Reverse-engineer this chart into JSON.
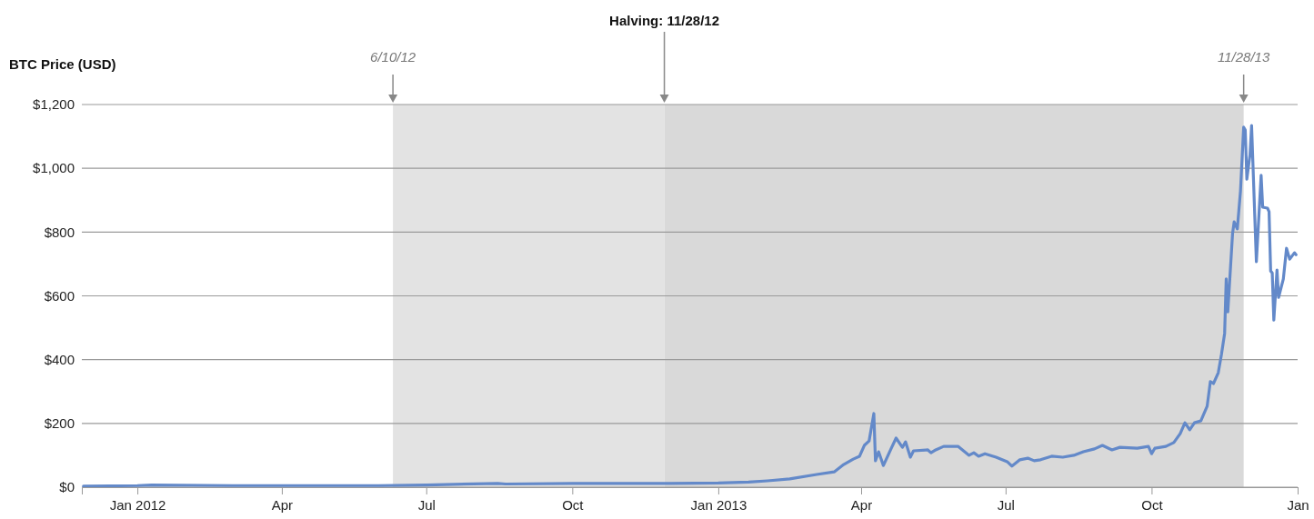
{
  "chart_data": {
    "type": "line",
    "ylabel": "BTC Price (USD)",
    "x": [
      "2011-11-28",
      "2012-01-01",
      "2012-01-10",
      "2012-03-01",
      "2012-06-01",
      "2012-07-01",
      "2012-08-15",
      "2012-08-20",
      "2012-10-01",
      "2012-12-01",
      "2013-01-01",
      "2013-01-20",
      "2013-02-01",
      "2013-02-15",
      "2013-03-04",
      "2013-03-15",
      "2013-03-21",
      "2013-03-27",
      "2013-03-31",
      "2013-04-03",
      "2013-04-06",
      "2013-04-09",
      "2013-04-10",
      "2013-04-12",
      "2013-04-15",
      "2013-04-20",
      "2013-04-23",
      "2013-04-27",
      "2013-04-29",
      "2013-05-02",
      "2013-05-04",
      "2013-05-13",
      "2013-05-15",
      "2013-05-18",
      "2013-05-23",
      "2013-06-01",
      "2013-06-08",
      "2013-06-11",
      "2013-06-14",
      "2013-06-18",
      "2013-06-25",
      "2013-07-02",
      "2013-07-05",
      "2013-07-10",
      "2013-07-15",
      "2013-07-19",
      "2013-07-23",
      "2013-07-30",
      "2013-08-06",
      "2013-08-13",
      "2013-08-19",
      "2013-08-26",
      "2013-08-31",
      "2013-09-06",
      "2013-09-11",
      "2013-09-22",
      "2013-09-29",
      "2013-10-01",
      "2013-10-03",
      "2013-10-10",
      "2013-10-15",
      "2013-10-19",
      "2013-10-22",
      "2013-10-25",
      "2013-10-28",
      "2013-11-01",
      "2013-11-05",
      "2013-11-07",
      "2013-11-09",
      "2013-11-12",
      "2013-11-14",
      "2013-11-16",
      "2013-11-17",
      "2013-11-18",
      "2013-11-21",
      "2013-11-22",
      "2013-11-24",
      "2013-11-26",
      "2013-11-28",
      "2013-11-29",
      "2013-11-30",
      "2013-12-02",
      "2013-12-03",
      "2013-12-06",
      "2013-12-09",
      "2013-12-10",
      "2013-12-13",
      "2013-12-14",
      "2013-12-15",
      "2013-12-16",
      "2013-12-17",
      "2013-12-19",
      "2013-12-20",
      "2013-12-23",
      "2013-12-25",
      "2013-12-27",
      "2013-12-30",
      "2013-12-31"
    ],
    "series": [
      {
        "color": "#6389c9",
        "values": [
          3,
          5,
          7,
          5,
          5,
          7,
          12,
          10,
          12,
          12,
          13,
          16,
          20,
          26,
          40,
          48,
          71,
          88,
          97,
          131,
          145,
          231,
          83,
          111,
          68,
          122,
          154,
          125,
          142,
          94,
          114,
          117,
          108,
          117,
          128,
          128,
          100,
          108,
          97,
          105,
          94,
          80,
          66,
          86,
          91,
          83,
          86,
          97,
          94,
          100,
          111,
          120,
          131,
          117,
          125,
          122,
          128,
          105,
          122,
          128,
          140,
          168,
          202,
          180,
          202,
          208,
          254,
          331,
          325,
          359,
          416,
          482,
          653,
          550,
          795,
          832,
          810,
          929,
          1129,
          1120,
          966,
          1043,
          1134,
          707,
          978,
          878,
          875,
          864,
          678,
          672,
          524,
          681,
          595,
          653,
          749,
          715,
          735,
          729
        ]
      }
    ],
    "xlim": [
      "2011-11-27",
      "2014-01-01"
    ],
    "xticks": [
      {
        "value": "2012-01-01",
        "label": "Jan 2012"
      },
      {
        "value": "2012-04-01",
        "label": "Apr"
      },
      {
        "value": "2012-07-01",
        "label": "Jul"
      },
      {
        "value": "2012-10-01",
        "label": "Oct"
      },
      {
        "value": "2013-01-01",
        "label": "Jan 2013"
      },
      {
        "value": "2013-04-01",
        "label": "Apr"
      },
      {
        "value": "2013-07-01",
        "label": "Jul"
      },
      {
        "value": "2013-10-01",
        "label": "Oct"
      },
      {
        "value": "2014-01-01",
        "label": "Jan"
      }
    ],
    "ylim": [
      0,
      1200
    ],
    "yticks": [
      {
        "value": 0,
        "label": "$0"
      },
      {
        "value": 200,
        "label": "$200"
      },
      {
        "value": 400,
        "label": "$400"
      },
      {
        "value": 600,
        "label": "$600"
      },
      {
        "value": 800,
        "label": "$800"
      },
      {
        "value": 1000,
        "label": "$1,000"
      },
      {
        "value": 1200,
        "label": "$1,200"
      }
    ],
    "grid": "y",
    "marker": "none",
    "line_style": "solid",
    "bands": [
      {
        "axis": "x",
        "from": "2012-06-10",
        "to": "2012-11-28",
        "color": "#e3e3e3"
      },
      {
        "axis": "x",
        "from": "2012-11-28",
        "to": "2013-11-28",
        "color": "#d9d9d9"
      }
    ],
    "annotations": [
      {
        "text": "6/10/12",
        "x": "2012-06-10",
        "y": 1200
      },
      {
        "text": "Halving: 11/28/12",
        "x": "2012-11-28",
        "y": 1200
      },
      {
        "text": "11/28/13",
        "x": "2013-11-28",
        "y": 1200
      }
    ]
  }
}
